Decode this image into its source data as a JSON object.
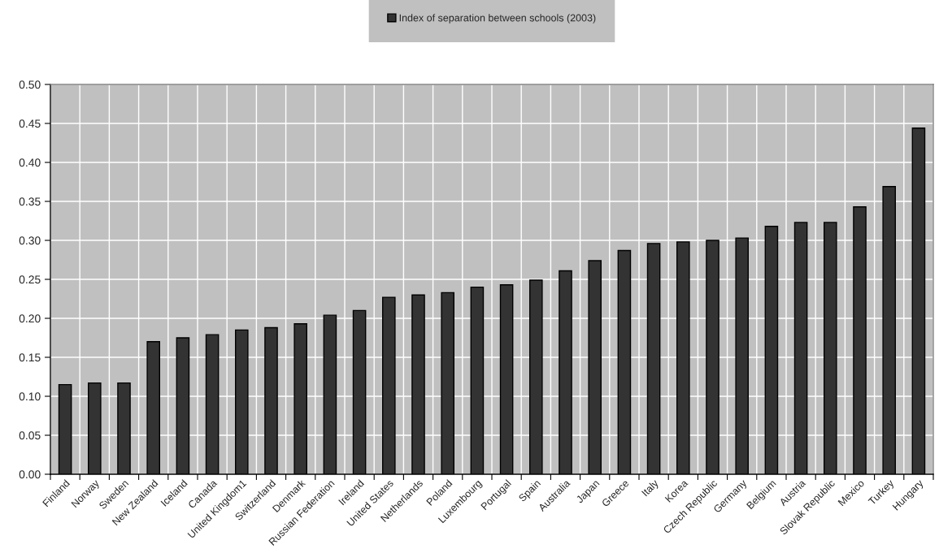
{
  "chart_data": {
    "type": "bar",
    "categories": [
      "Finland",
      "Norway",
      "Sweden",
      "New Zealand",
      "Iceland",
      "Canada",
      "United Kingdom1",
      "Switzerland",
      "Denmark",
      "Russian Federation",
      "Ireland",
      "United States",
      "Netherlands",
      "Poland",
      "Luxembourg",
      "Portugal",
      "Spain",
      "Australia",
      "Japan",
      "Greece",
      "Italy",
      "Korea",
      "Czech Republic",
      "Germany",
      "Belgium",
      "Austria",
      "Slovak Republic",
      "Mexico",
      "Turkey",
      "Hungary"
    ],
    "series": [
      {
        "name": "Index of separation between schools (2003)",
        "color": "#333333",
        "values": [
          0.115,
          0.117,
          0.117,
          0.17,
          0.175,
          0.179,
          0.185,
          0.188,
          0.193,
          0.204,
          0.21,
          0.227,
          0.23,
          0.233,
          0.24,
          0.243,
          0.249,
          0.261,
          0.274,
          0.287,
          0.296,
          0.298,
          0.3,
          0.303,
          0.318,
          0.323,
          0.323,
          0.343,
          0.369,
          0.444
        ]
      }
    ],
    "ylim": [
      0,
      0.5
    ],
    "yticks": [
      {
        "value": 0,
        "label": "0.00"
      },
      {
        "value": 0.05,
        "label": "0.05"
      },
      {
        "value": 0.1,
        "label": "0.10"
      },
      {
        "value": 0.15,
        "label": "0.15"
      },
      {
        "value": 0.2,
        "label": "0.20"
      },
      {
        "value": 0.25,
        "label": "0.25"
      },
      {
        "value": 0.3,
        "label": "0.30"
      },
      {
        "value": 0.35,
        "label": "0.35"
      },
      {
        "value": 0.4,
        "label": "0.40"
      },
      {
        "value": 0.45,
        "label": "0.45"
      },
      {
        "value": 0.5,
        "label": "0.50"
      }
    ],
    "grid": true,
    "legend": "top"
  }
}
